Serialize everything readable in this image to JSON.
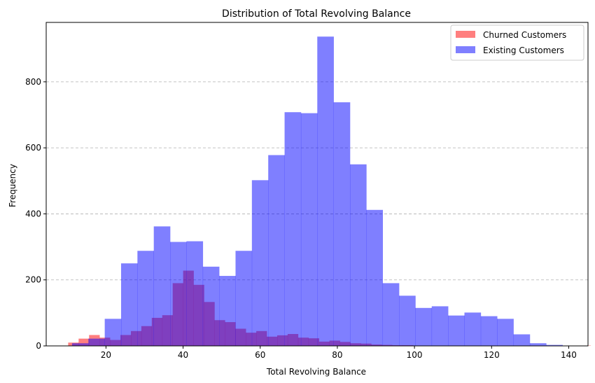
{
  "chart_data": {
    "type": "bar",
    "title": "Distribution of Total Revolving Balance",
    "xlabel": "Total Revolving Balance",
    "ylabel": "Frequency",
    "xlim": [
      4.5,
      145
    ],
    "ylim": [
      0,
      980
    ],
    "xticks": [
      20,
      40,
      60,
      80,
      100,
      120,
      140
    ],
    "yticks": [
      0,
      200,
      400,
      600,
      800
    ],
    "grid": "y-dashed",
    "legend_position": "top-right",
    "series": [
      {
        "name": "Churned Customers",
        "color": "#ff0000",
        "opacity": 0.5,
        "bin_start": 10.2,
        "bin_width": 2.71,
        "values": [
          10,
          22,
          33,
          25,
          18,
          33,
          45,
          60,
          85,
          93,
          190,
          228,
          185,
          133,
          78,
          72,
          52,
          40,
          45,
          28,
          32,
          36,
          25,
          23,
          13,
          16,
          12,
          8,
          7,
          4,
          3,
          2,
          2,
          1,
          1,
          1,
          0,
          0,
          0,
          0,
          0,
          0,
          0,
          0,
          0,
          0,
          0,
          0,
          0,
          1
        ]
      },
      {
        "name": "Existing Customers",
        "color": "#0000ff",
        "opacity": 0.5,
        "bin_start": 11.2,
        "bin_width": 4.24,
        "values": [
          8,
          22,
          82,
          250,
          288,
          362,
          315,
          317,
          240,
          212,
          288,
          502,
          578,
          708,
          705,
          937,
          738,
          550,
          412,
          190,
          152,
          115,
          120,
          92,
          101,
          90,
          82,
          35,
          8,
          3
        ]
      }
    ]
  }
}
